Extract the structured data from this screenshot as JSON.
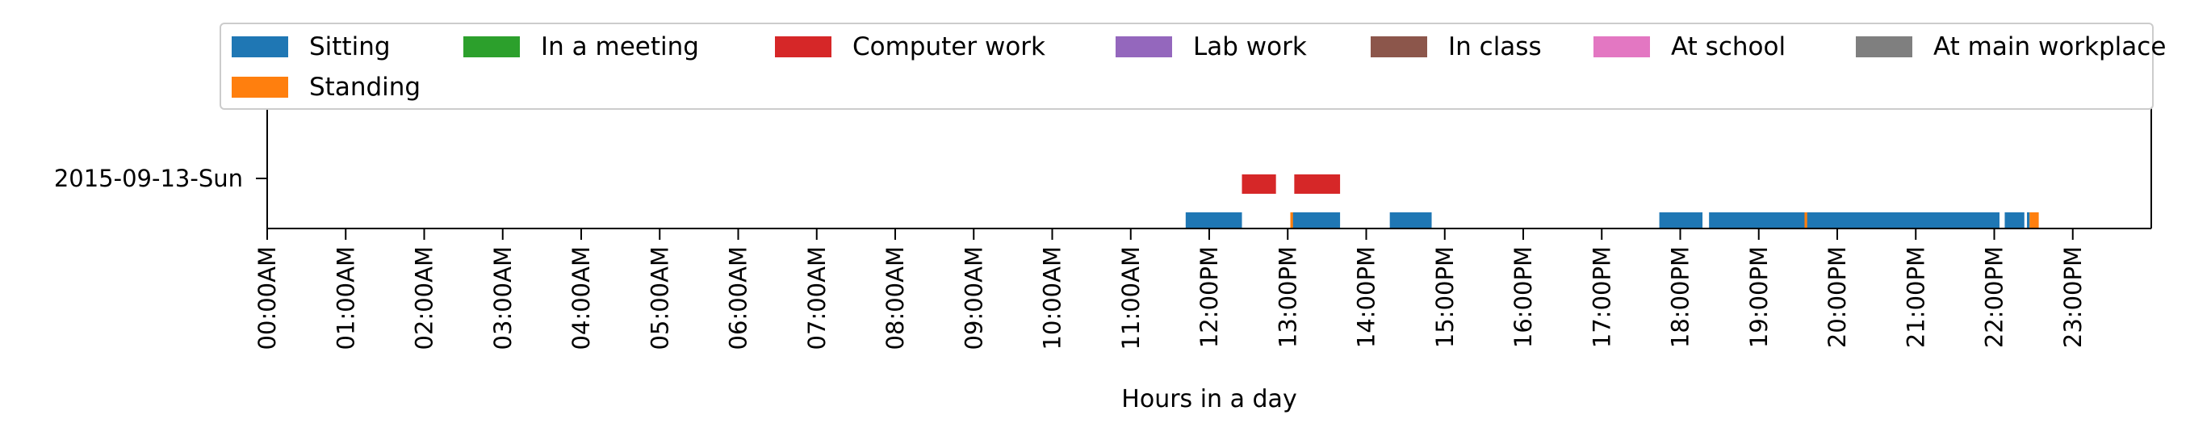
{
  "chart_data": {
    "type": "timeline",
    "xlabel": "Hours in a day",
    "x_ticks": [
      "00:00AM",
      "01:00AM",
      "02:00AM",
      "03:00AM",
      "04:00AM",
      "05:00AM",
      "06:00AM",
      "07:00AM",
      "08:00AM",
      "09:00AM",
      "10:00AM",
      "11:00AM",
      "12:00PM",
      "13:00PM",
      "14:00PM",
      "15:00PM",
      "16:00PM",
      "17:00PM",
      "18:00PM",
      "19:00PM",
      "20:00PM",
      "21:00PM",
      "22:00PM",
      "23:00PM"
    ],
    "xlim": [
      "00:00",
      "24:00"
    ],
    "row_label": "2015-09-13-Sun",
    "grid": false,
    "legend_position": "top",
    "legend": [
      {
        "label": "Sitting",
        "color": "#1f77b4"
      },
      {
        "label": "In a meeting",
        "color": "#2ca02c"
      },
      {
        "label": "Computer work",
        "color": "#d62728"
      },
      {
        "label": "Lab work",
        "color": "#9467bd"
      },
      {
        "label": "In class",
        "color": "#8c564b"
      },
      {
        "label": "At school",
        "color": "#e377c2"
      },
      {
        "label": "At main workplace",
        "color": "#7f7f7f"
      },
      {
        "label": "Standing",
        "color": "#ff7f0e"
      }
    ],
    "series": [
      {
        "name": "Sitting",
        "color": "#1f77b4",
        "level": 0,
        "intervals": [
          [
            "11:42",
            "12:25"
          ],
          [
            "13:02",
            "13:40"
          ],
          [
            "14:18",
            "14:50"
          ],
          [
            "17:44",
            "18:17"
          ],
          [
            "18:22",
            "22:04"
          ],
          [
            "22:08",
            "22:23"
          ],
          [
            "22:25",
            "22:27"
          ]
        ]
      },
      {
        "name": "Standing",
        "color": "#ff7f0e",
        "level": 0,
        "intervals": [
          [
            "13:02",
            "13:04"
          ],
          [
            "19:35",
            "19:37"
          ],
          [
            "22:27",
            "22:34"
          ]
        ]
      },
      {
        "name": "Computer work",
        "color": "#d62728",
        "level": 1,
        "intervals": [
          [
            "12:25",
            "12:51"
          ],
          [
            "13:05",
            "13:40"
          ]
        ]
      }
    ]
  }
}
